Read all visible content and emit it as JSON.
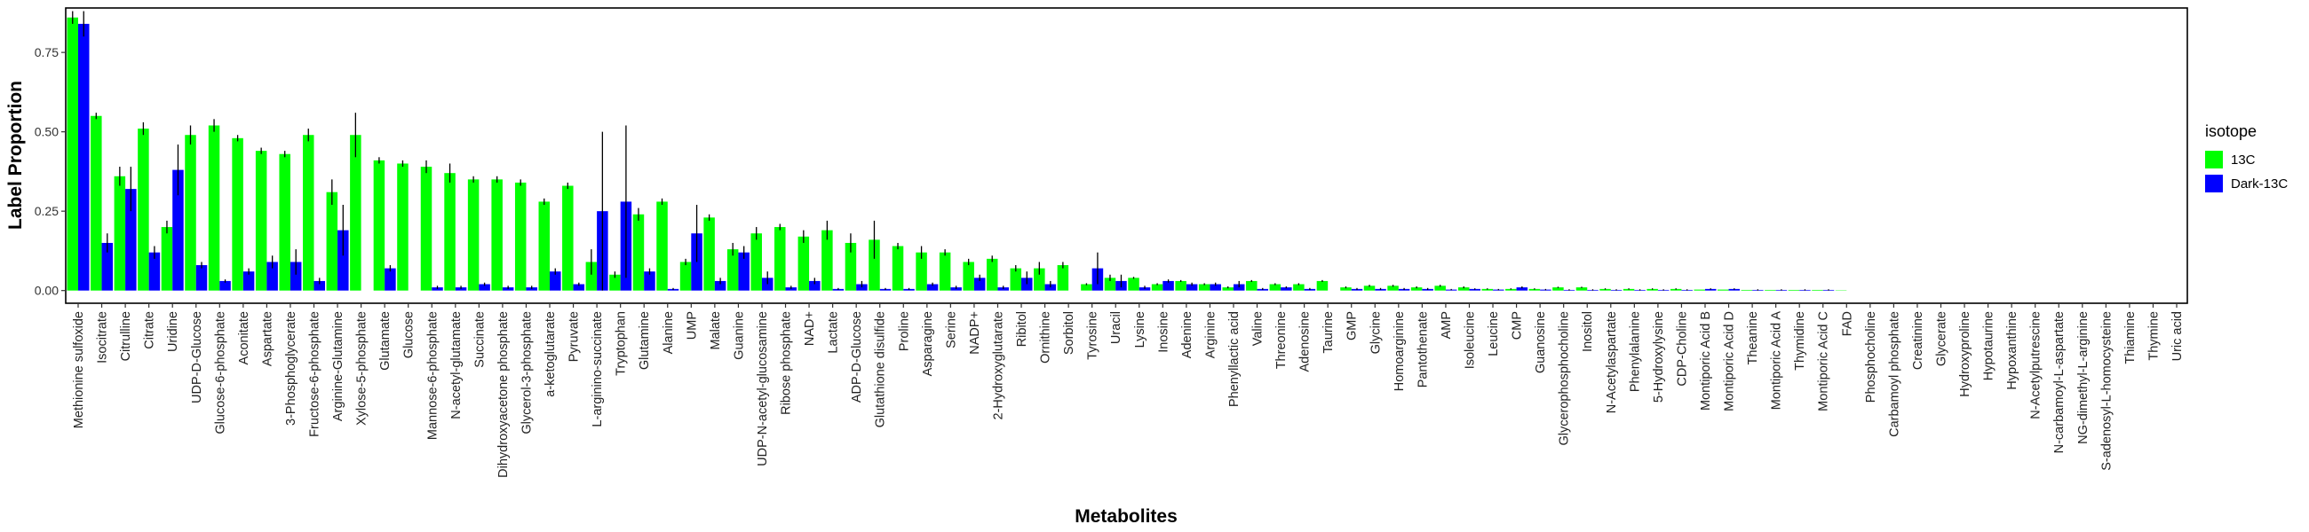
{
  "chart_data": {
    "type": "bar",
    "title": "",
    "xlabel": "Metabolites",
    "ylabel": "Label Proportion",
    "ylim": [
      -0.04,
      0.89
    ],
    "yticks": [
      0.0,
      0.25,
      0.5,
      0.75
    ],
    "ytick_labels": [
      "0.00",
      "0.25",
      "0.50",
      "0.75"
    ],
    "grid": false,
    "legend": {
      "title": "isotope",
      "position": "right"
    },
    "categories": [
      "Methionine sulfoxide",
      "Isocitrate",
      "Citrulline",
      "Citrate",
      "Uridine",
      "UDP-D-Glucose",
      "Glucose-6-phosphate",
      "Aconitate",
      "Aspartate",
      "3-Phosphoglycerate",
      "Fructose-6-phosphate",
      "Arginine-Glutamine",
      "Xylose-5-phosphate",
      "Glutamate",
      "Glucose",
      "Mannose-6-phosphate",
      "N-acetyl-glutamate",
      "Succinate",
      "Dihydroxyacetone phosphate",
      "Glycerol-3-phosphate",
      "a-ketoglutarate",
      "Pyruvate",
      "L-arginino-succinate",
      "Tryptophan",
      "Glutamine",
      "Alanine",
      "UMP",
      "Malate",
      "Guanine",
      "UDP-N-acetyl-glucosamine",
      "Ribose phosphate",
      "NAD+",
      "Lactate",
      "ADP-D-Glucose",
      "Glutathione disulfide",
      "Proline",
      "Asparagine",
      "Serine",
      "NADP+",
      "2-Hydroxyglutarate",
      "Ribitol",
      "Ornithine",
      "Sorbitol",
      "Tyrosine",
      "Uracil",
      "Lysine",
      "Inosine",
      "Adenine",
      "Arginine",
      "Phenyllactic acid",
      "Valine",
      "Threonine",
      "Adenosine",
      "Taurine",
      "GMP",
      "Glycine",
      "Homoarginine",
      "Pantothenate",
      "AMP",
      "Isoleucine",
      "Leucine",
      "CMP",
      "Guanosine",
      "Glycerophosphocholine",
      "Inositol",
      "N-Acetylaspartate",
      "Phenylalanine",
      "5-Hydroxylysine",
      "CDP-Choline",
      "Montiporic Acid B",
      "Montiporic Acid D",
      "Theanine",
      "Montiporic Acid A",
      "Thymidine",
      "Montiporic Acid C",
      "FAD",
      "Phosphocholine",
      "Carbamoyl phosphate",
      "Creatinine",
      "Glycerate",
      "Hydroxyproline",
      "Hypotaurine",
      "Hypoxanthine",
      "N-Acetylputrescine",
      "N-carbamoyl-L-aspartate",
      "NG-dimethyl-L-arginine",
      "S-adenosyl-L-homocysteine",
      "Thiamine",
      "Thymine",
      "Uric acid"
    ],
    "series": [
      {
        "name": "13C",
        "color": "#00ff00",
        "values": [
          0.86,
          0.55,
          0.36,
          0.51,
          0.2,
          0.49,
          0.52,
          0.48,
          0.44,
          0.43,
          0.49,
          0.31,
          0.49,
          0.41,
          0.4,
          0.39,
          0.37,
          0.35,
          0.35,
          0.34,
          0.28,
          0.33,
          0.09,
          0.05,
          0.24,
          0.28,
          0.09,
          0.23,
          0.13,
          0.18,
          0.2,
          0.17,
          0.19,
          0.15,
          0.16,
          0.14,
          0.12,
          0.12,
          0.09,
          0.1,
          0.07,
          0.07,
          0.08,
          0.02,
          0.04,
          0.04,
          0.02,
          0.03,
          0.02,
          0.01,
          0.03,
          0.02,
          0.02,
          0.03,
          0.01,
          0.015,
          0.015,
          0.01,
          0.015,
          0.01,
          0.005,
          0.005,
          0.005,
          0.01,
          0.01,
          0.005,
          0.005,
          0.005,
          0.005,
          0.003,
          0.003,
          0.002,
          0.002,
          0.002,
          0.002,
          0.001,
          0.0,
          0.0,
          0.0,
          0.0,
          0.0,
          0.0,
          0.0,
          0.0,
          0.0,
          0.0,
          0.0,
          0.0,
          0.0,
          0.0
        ],
        "errors": [
          0.02,
          0.01,
          0.03,
          0.02,
          0.02,
          0.03,
          0.02,
          0.01,
          0.01,
          0.01,
          0.02,
          0.04,
          0.07,
          0.01,
          0.01,
          0.02,
          0.03,
          0.01,
          0.01,
          0.01,
          0.01,
          0.01,
          0.04,
          0.01,
          0.02,
          0.01,
          0.01,
          0.01,
          0.02,
          0.02,
          0.01,
          0.02,
          0.03,
          0.03,
          0.06,
          0.01,
          0.02,
          0.01,
          0.01,
          0.01,
          0.01,
          0.02,
          0.01,
          0.003,
          0.01,
          0.003,
          0.003,
          0.003,
          0.003,
          0.003,
          0.003,
          0.003,
          0.003,
          0.003,
          0.003,
          0.003,
          0.003,
          0.003,
          0.003,
          0.003,
          0.002,
          0.002,
          0.002,
          0.002,
          0.002,
          0.002,
          0.002,
          0.002,
          0.002,
          0.0,
          0.0,
          0.0,
          0.0,
          0.0,
          0.0,
          0.0,
          0.0,
          0.0,
          0.0,
          0.0,
          0.0,
          0.0,
          0.0,
          0.0,
          0.0,
          0.0,
          0.0,
          0.0,
          0.0,
          0.0
        ]
      },
      {
        "name": "Dark-13C",
        "color": "#0000ff",
        "values": [
          0.84,
          0.15,
          0.32,
          0.12,
          0.38,
          0.08,
          0.03,
          0.06,
          0.09,
          0.09,
          0.03,
          0.19,
          0.0,
          0.07,
          0.0,
          0.01,
          0.01,
          0.02,
          0.01,
          0.01,
          0.06,
          0.02,
          0.25,
          0.28,
          0.06,
          0.005,
          0.18,
          0.03,
          0.12,
          0.04,
          0.01,
          0.03,
          0.005,
          0.02,
          0.005,
          0.005,
          0.02,
          0.01,
          0.04,
          0.01,
          0.04,
          0.02,
          0.0,
          0.07,
          0.03,
          0.01,
          0.03,
          0.02,
          0.02,
          0.02,
          0.005,
          0.01,
          0.005,
          0.0,
          0.005,
          0.005,
          0.005,
          0.005,
          0.003,
          0.005,
          0.003,
          0.01,
          0.003,
          0.002,
          0.002,
          0.002,
          0.002,
          0.002,
          0.002,
          0.005,
          0.005,
          0.002,
          0.002,
          0.002,
          0.002,
          0.0,
          0.0,
          0.0,
          0.0,
          0.0,
          0.0,
          0.0,
          0.0,
          0.0,
          0.0,
          0.0,
          0.0,
          0.0,
          0.0,
          0.0
        ],
        "errors": [
          0.04,
          0.03,
          0.07,
          0.02,
          0.08,
          0.01,
          0.005,
          0.01,
          0.02,
          0.04,
          0.01,
          0.08,
          0.0,
          0.01,
          0.0,
          0.005,
          0.005,
          0.005,
          0.005,
          0.005,
          0.01,
          0.005,
          0.25,
          0.24,
          0.01,
          0.003,
          0.09,
          0.01,
          0.02,
          0.02,
          0.005,
          0.01,
          0.003,
          0.01,
          0.003,
          0.003,
          0.005,
          0.005,
          0.01,
          0.005,
          0.02,
          0.01,
          0.0,
          0.05,
          0.02,
          0.005,
          0.005,
          0.005,
          0.005,
          0.01,
          0.003,
          0.003,
          0.003,
          0.0,
          0.003,
          0.003,
          0.003,
          0.003,
          0.002,
          0.002,
          0.002,
          0.003,
          0.002,
          0.002,
          0.002,
          0.002,
          0.002,
          0.002,
          0.002,
          0.002,
          0.002,
          0.002,
          0.002,
          0.002,
          0.002,
          0.0,
          0.0,
          0.0,
          0.0,
          0.0,
          0.0,
          0.0,
          0.0,
          0.0,
          0.0,
          0.0,
          0.0,
          0.0,
          0.0,
          0.0
        ]
      }
    ]
  }
}
